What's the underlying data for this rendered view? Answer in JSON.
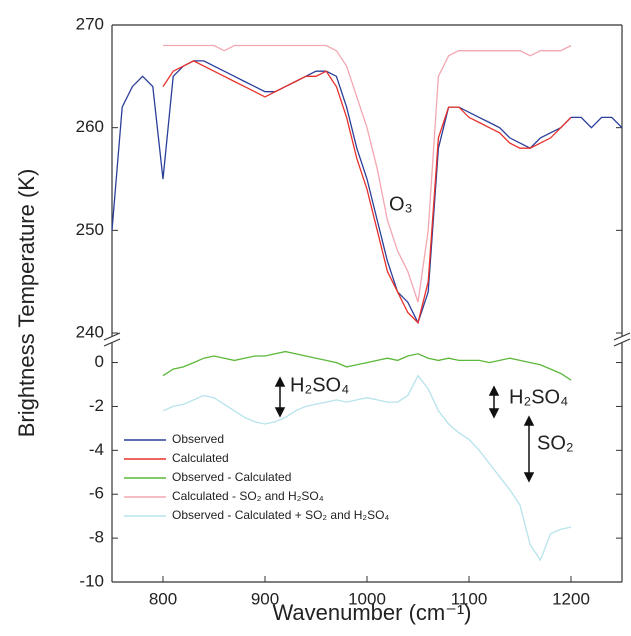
{
  "chart_data": [
    {
      "type": "line",
      "y_label": "Brightness Temperature (K)",
      "annotations": [
        "O₃"
      ],
      "xlim": [
        750,
        1250
      ],
      "ylim": [
        240,
        270
      ],
      "yticks": [
        240,
        250,
        260,
        270
      ],
      "x": [
        750,
        760,
        770,
        780,
        790,
        800,
        810,
        820,
        830,
        840,
        850,
        860,
        870,
        880,
        890,
        900,
        910,
        920,
        930,
        940,
        950,
        960,
        970,
        980,
        990,
        1000,
        1010,
        1020,
        1030,
        1040,
        1050,
        1060,
        1070,
        1080,
        1090,
        1100,
        1110,
        1120,
        1130,
        1140,
        1150,
        1160,
        1170,
        1180,
        1190,
        1200,
        1210,
        1220,
        1230,
        1240,
        1250
      ],
      "series": [
        {
          "name": "Calculated - SO₂ and H₂SO₄",
          "color": "#f3a7b0",
          "values": [
            null,
            null,
            null,
            null,
            null,
            268,
            268,
            268,
            268,
            268,
            268,
            267.5,
            268,
            268,
            268,
            268,
            268,
            268,
            268,
            268,
            268,
            268,
            267.5,
            266,
            263,
            260,
            256,
            251,
            248,
            246,
            243,
            250,
            265,
            267,
            267.5,
            267.5,
            267.5,
            267.5,
            267.5,
            267.5,
            267.5,
            267,
            267.5,
            267.5,
            267.5,
            268,
            null,
            null,
            null,
            null,
            null
          ]
        },
        {
          "name": "Observed",
          "color": "#2b3f9a",
          "values": [
            250,
            262,
            264,
            265,
            264,
            255,
            265,
            266,
            266.5,
            266.5,
            266,
            265.5,
            265,
            264.5,
            264,
            263.5,
            263.5,
            264,
            264.5,
            265,
            265.5,
            265.5,
            265,
            262,
            258,
            255,
            251,
            247,
            244,
            243,
            241,
            244,
            258,
            262,
            262,
            261.5,
            261,
            260.5,
            260,
            259,
            258.5,
            258,
            259,
            259.5,
            260,
            261,
            261,
            260,
            261,
            261,
            260
          ]
        },
        {
          "name": "Calculated",
          "color": "#e8302a",
          "values": [
            null,
            null,
            null,
            null,
            null,
            264,
            265.5,
            266,
            266.5,
            266,
            265.5,
            265,
            264.5,
            264,
            263.5,
            263,
            263.5,
            264,
            264.5,
            265,
            265,
            265.5,
            264,
            261,
            257,
            254,
            250,
            246,
            244,
            242,
            241,
            245,
            259,
            262,
            262,
            261,
            260.5,
            260,
            259.5,
            258.5,
            258,
            258,
            258.5,
            259,
            260,
            261,
            null,
            null,
            null,
            null,
            null
          ]
        }
      ]
    },
    {
      "type": "line",
      "x_label": "Wavenumber (cm⁻¹)",
      "annotations": [
        "H₂SO₄",
        "H₂SO₄",
        "SO₂"
      ],
      "legend": "lower left",
      "xlim": [
        750,
        1250
      ],
      "xticks": [
        800,
        900,
        1000,
        1100,
        1200
      ],
      "ylim": [
        -10,
        0.8
      ],
      "yticks": [
        0,
        -2,
        -4,
        -6,
        -8,
        -10
      ],
      "x": [
        800,
        810,
        820,
        830,
        840,
        850,
        860,
        870,
        880,
        890,
        900,
        910,
        920,
        930,
        940,
        950,
        960,
        970,
        980,
        990,
        1000,
        1010,
        1020,
        1030,
        1040,
        1050,
        1060,
        1070,
        1080,
        1090,
        1100,
        1110,
        1120,
        1130,
        1140,
        1150,
        1160,
        1170,
        1180,
        1190,
        1200
      ],
      "series": [
        {
          "name": "Observed - Calculated",
          "color": "#5cb83a",
          "values": [
            -0.6,
            -0.3,
            -0.2,
            0,
            0.2,
            0.3,
            0.2,
            0.1,
            0.2,
            0.3,
            0.3,
            0.4,
            0.5,
            0.4,
            0.3,
            0.2,
            0.1,
            0,
            -0.2,
            -0.1,
            0,
            0.1,
            0.2,
            0.1,
            0.3,
            0.4,
            0.2,
            0.1,
            0.2,
            0.1,
            0.1,
            0.1,
            0,
            0.1,
            0.2,
            0.1,
            0,
            -0.1,
            -0.3,
            -0.5,
            -0.8
          ]
        },
        {
          "name": "Observed - Calculated + SO₂ and H₂SO₄",
          "color": "#b7e3ec",
          "values": [
            -2.2,
            -2,
            -1.9,
            -1.7,
            -1.5,
            -1.6,
            -1.9,
            -2.2,
            -2.5,
            -2.7,
            -2.8,
            -2.7,
            -2.5,
            -2.2,
            -2,
            -1.9,
            -1.8,
            -1.7,
            -1.8,
            -1.7,
            -1.6,
            -1.7,
            -1.8,
            -1.8,
            -1.5,
            -0.6,
            -1.2,
            -2.2,
            -2.8,
            -3.2,
            -3.5,
            -4,
            -4.6,
            -5.2,
            -5.8,
            -6.5,
            -8.3,
            -9,
            -7.8,
            -7.6,
            -7.5
          ]
        }
      ]
    }
  ]
}
